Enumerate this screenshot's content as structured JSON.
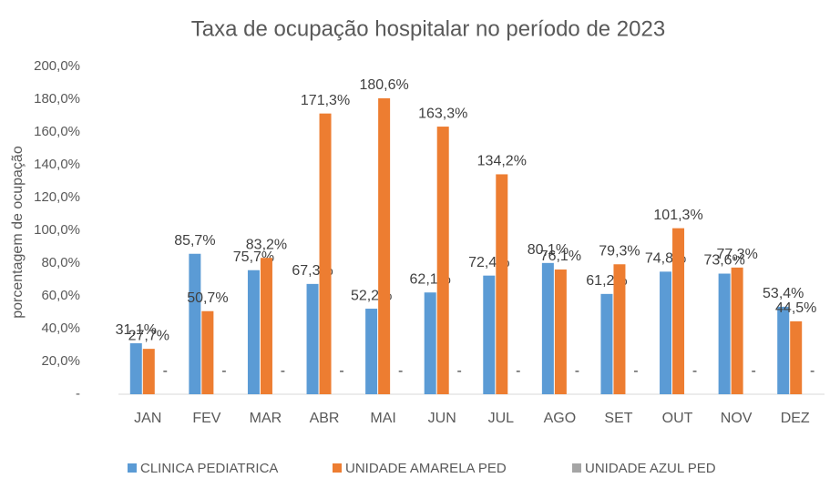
{
  "chart_data": {
    "type": "bar",
    "title": "Taxa de ocupação hospitalar no período de 2023",
    "y_label": "porcentagem de ocupação",
    "categories": [
      "JAN",
      "FEV",
      "MAR",
      "ABR",
      "MAI",
      "JUN",
      "JUL",
      "AGO",
      "SET",
      "OUT",
      "NOV",
      "DEZ"
    ],
    "series": [
      {
        "name": "CLINICA PEDIATRICA",
        "color": "#5b9bd5",
        "values": [
          31.1,
          85.7,
          75.7,
          67.3,
          52.2,
          62.1,
          72.4,
          80.1,
          61.2,
          74.8,
          73.6,
          53.4
        ],
        "value_labels": [
          "31,1%",
          "85,7%",
          "75,7%",
          "67,3%",
          "52,2%",
          "62,1%",
          "72,4%",
          "80,1%",
          "61,2%",
          "74,8%",
          "73,6%",
          "53,4%"
        ]
      },
      {
        "name": "UNIDADE AMARELA PED",
        "color": "#ed7d31",
        "values": [
          27.7,
          50.7,
          83.2,
          171.3,
          180.6,
          163.3,
          134.2,
          76.1,
          79.3,
          101.3,
          77.3,
          44.5
        ],
        "value_labels": [
          "27,7%",
          "50,7%",
          "83,2%",
          "171,3%",
          "180,6%",
          "163,3%",
          "134,2%",
          "76,1%",
          "79,3%",
          "101,3%",
          "77,3%",
          "44,5%"
        ]
      },
      {
        "name": "UNIDADE AZUL PED",
        "color": "#a5a5a5",
        "values": [
          0,
          0,
          0,
          0,
          0,
          0,
          0,
          0,
          0,
          0,
          0,
          0
        ],
        "value_labels": [
          "-",
          "-",
          "-",
          "-",
          "-",
          "-",
          "-",
          "-",
          "-",
          "-",
          "-",
          "-"
        ]
      }
    ],
    "ylim": [
      0,
      200
    ],
    "yticks": [
      {
        "value": 0,
        "label": "-"
      },
      {
        "value": 20,
        "label": "20,0%"
      },
      {
        "value": 40,
        "label": "40,0%"
      },
      {
        "value": 60,
        "label": "60,0%"
      },
      {
        "value": 80,
        "label": "80,0%"
      },
      {
        "value": 100,
        "label": "100,0%"
      },
      {
        "value": 120,
        "label": "120,0%"
      },
      {
        "value": 140,
        "label": "140,0%"
      },
      {
        "value": 160,
        "label": "160,0%"
      },
      {
        "value": 180,
        "label": "180,0%"
      },
      {
        "value": 200,
        "label": "200,0%"
      }
    ],
    "grid": false,
    "legend": "bottom"
  }
}
